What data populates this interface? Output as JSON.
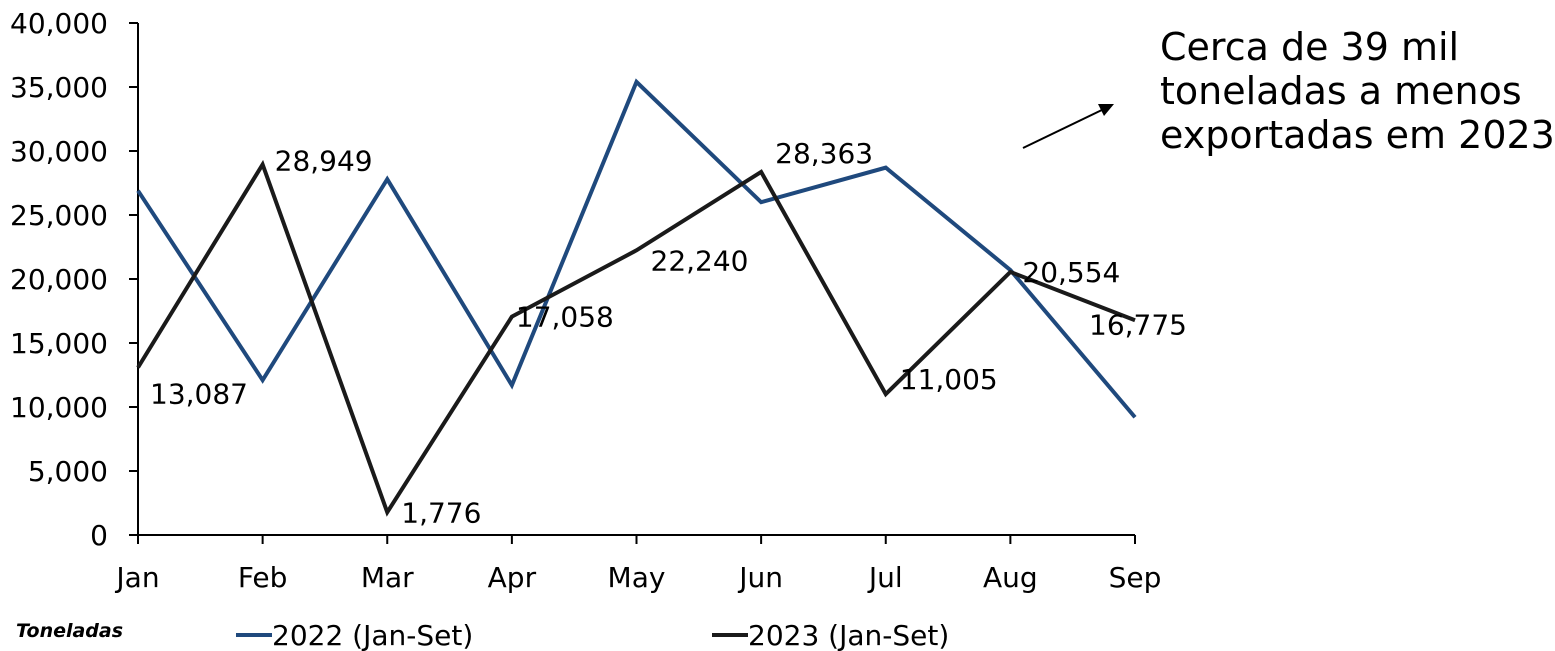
{
  "chart_data": {
    "type": "line",
    "categories": [
      "Jan",
      "Feb",
      "Mar",
      "Apr",
      "May",
      "Jun",
      "Jul",
      "Aug",
      "Sep"
    ],
    "ylim": [
      0,
      40000
    ],
    "yticks": [
      0,
      5000,
      10000,
      15000,
      20000,
      25000,
      30000,
      35000,
      40000
    ],
    "ytick_labels": [
      "0",
      "5,000",
      "10,000",
      "15,000",
      "20,000",
      "25,000",
      "30,000",
      "35,000",
      "40,000"
    ],
    "unit_label": "Toneladas",
    "legend_position": "bottom",
    "grid": false,
    "series": [
      {
        "name": "2022 (Jan-Set)",
        "color": "#1f497d",
        "values": [
          26900,
          12100,
          27800,
          11700,
          35400,
          26000,
          28700,
          20700,
          9200
        ]
      },
      {
        "name": "2023 (Jan-Set)",
        "color": "#1a1a1a",
        "values": [
          13087,
          28949,
          1776,
          17058,
          22240,
          28363,
          11005,
          20554,
          16775
        ],
        "data_labels": [
          "13,087",
          "28,949",
          "1,776",
          "17,058",
          "22,240",
          "28,363",
          "11,005",
          "20,554",
          "16,775"
        ]
      }
    ],
    "annotation": {
      "lines": [
        "Cerca de 39 mil",
        "toneladas a menos",
        "exportadas em 2023"
      ]
    }
  }
}
